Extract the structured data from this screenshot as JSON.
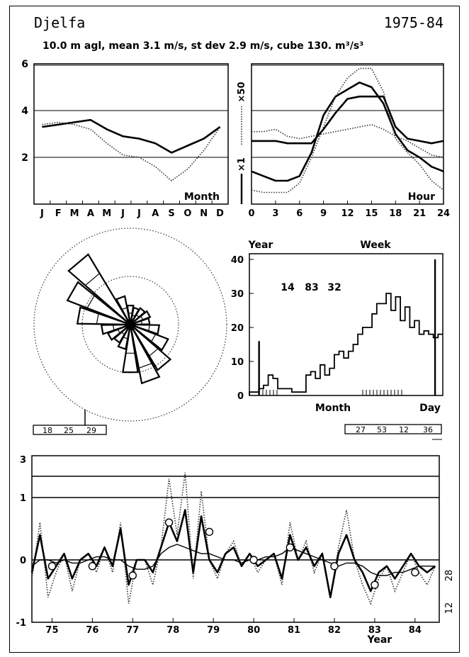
{
  "header": {
    "station": "Djelfa",
    "period": "1975-84",
    "subtitle": "10.0 m agl, mean  3.1 m/s, st dev  2.9 m/s, cube  130. m³/s³"
  },
  "chart_data": [
    {
      "id": "monthly",
      "type": "line",
      "label": "Month",
      "ylim": [
        0,
        6
      ],
      "yticks": [
        2,
        4,
        6
      ],
      "reference_lines": [
        2,
        4
      ],
      "categories": [
        "J",
        "F",
        "M",
        "A",
        "M",
        "J",
        "J",
        "A",
        "S",
        "O",
        "N",
        "D"
      ],
      "x": [
        0.5,
        1.5,
        2.5,
        3.5,
        4.5,
        5.5,
        6.5,
        7.5,
        8.5,
        9.5,
        10.5,
        11.5
      ],
      "series": [
        {
          "style": "solid-thick",
          "values": [
            3.3,
            3.4,
            3.5,
            3.6,
            3.2,
            2.9,
            2.8,
            2.6,
            2.2,
            2.5,
            2.8,
            3.3
          ]
        },
        {
          "style": "dotted",
          "values": [
            3.4,
            3.5,
            3.4,
            3.2,
            2.6,
            2.1,
            2.0,
            1.6,
            1.0,
            1.5,
            2.3,
            3.3
          ]
        }
      ]
    },
    {
      "id": "diurnal",
      "type": "line",
      "label": "Hour",
      "xlim": [
        0,
        24
      ],
      "xticks": [
        0,
        3,
        6,
        9,
        12,
        15,
        18,
        21,
        24
      ],
      "ylim": [
        0,
        6
      ],
      "reference_lines": [
        2,
        4
      ],
      "axis_labels": [
        "×50",
        "×1"
      ],
      "x": [
        0,
        1.5,
        3,
        4.5,
        6,
        7.5,
        9,
        10.5,
        12,
        13.5,
        15,
        16.5,
        18,
        19.5,
        21,
        22.5,
        24
      ],
      "series": [
        {
          "style": "solid-thick",
          "values": [
            2.7,
            2.7,
            2.7,
            2.6,
            2.6,
            2.6,
            3.2,
            3.9,
            4.5,
            4.6,
            4.6,
            4.6,
            3.3,
            2.8,
            2.7,
            2.6,
            2.7
          ]
        },
        {
          "style": "solid-thick",
          "values": [
            1.4,
            1.2,
            1.0,
            1.0,
            1.2,
            2.2,
            3.8,
            4.6,
            4.9,
            5.2,
            5.0,
            4.3,
            3.0,
            2.3,
            2.0,
            1.6,
            1.4
          ]
        },
        {
          "style": "dotted",
          "values": [
            0.6,
            0.5,
            0.5,
            0.5,
            0.9,
            2.0,
            3.3,
            4.6,
            5.4,
            5.8,
            5.8,
            4.8,
            2.8,
            2.2,
            1.7,
            1.0,
            0.6
          ]
        },
        {
          "style": "dotted",
          "values": [
            3.1,
            3.1,
            3.2,
            2.9,
            2.8,
            2.9,
            3.0,
            3.1,
            3.2,
            3.3,
            3.4,
            3.2,
            2.9,
            2.7,
            2.4,
            2.1,
            2.0
          ]
        }
      ]
    },
    {
      "id": "windrose",
      "type": "rose",
      "sectors_deg": [
        0,
        20,
        40,
        60,
        80,
        100,
        120,
        140,
        160,
        180,
        200,
        220,
        240,
        260,
        280,
        300,
        320,
        340
      ],
      "frequency": [
        0.2,
        0.18,
        0.2,
        0.22,
        0.2,
        0.3,
        0.42,
        0.55,
        0.62,
        0.5,
        0.26,
        0.22,
        0.25,
        0.3,
        0.55,
        0.7,
        0.85,
        0.3
      ],
      "speed": [
        0.12,
        0.1,
        0.12,
        0.14,
        0.12,
        0.2,
        0.28,
        0.38,
        0.46,
        0.3,
        0.15,
        0.12,
        0.14,
        0.18,
        0.35,
        0.48,
        0.62,
        0.18
      ],
      "reference_rings": [
        0.5,
        1.0
      ],
      "legend": [
        "18",
        "25",
        "29"
      ]
    },
    {
      "id": "distribution",
      "type": "bar",
      "labels": {
        "left": "Year",
        "top": "Week",
        "bottom": "Month",
        "right": "Day"
      },
      "ylim": [
        0,
        40
      ],
      "yticks": [
        0,
        10,
        20,
        30,
        40
      ],
      "xlim": [
        0,
        30
      ],
      "annotation": [
        "14",
        "83",
        "32"
      ],
      "values": [
        1,
        1,
        2,
        3,
        6,
        5,
        2,
        2,
        2,
        1,
        1,
        1,
        6,
        7,
        5,
        9,
        6,
        8,
        12,
        13,
        11,
        13,
        15,
        18,
        20,
        20,
        24,
        27,
        27,
        30,
        25,
        29,
        22,
        26,
        20,
        22,
        18,
        19,
        18,
        17,
        18
      ],
      "spikes": [
        {
          "x": 1.5,
          "value": 16
        },
        {
          "x": 28.8,
          "value": 40
        }
      ],
      "legend": [
        "27",
        "53",
        "12",
        "36"
      ]
    },
    {
      "id": "timeseries",
      "type": "line",
      "xlabel": "Year",
      "xticks": [
        75,
        76,
        77,
        78,
        79,
        80,
        81,
        82,
        83,
        84
      ],
      "xlim": [
        74.5,
        84.6
      ],
      "ylim": [
        -1,
        3
      ],
      "yticks": [
        -1,
        0,
        1,
        3
      ],
      "reference_lines": [
        0,
        1,
        1.5
      ],
      "right_axis_labels": [
        "28",
        "12"
      ],
      "x": [
        74.5,
        74.7,
        74.9,
        75.1,
        75.3,
        75.5,
        75.7,
        75.9,
        76.1,
        76.3,
        76.5,
        76.7,
        76.9,
        77.1,
        77.3,
        77.5,
        77.7,
        77.9,
        78.1,
        78.3,
        78.5,
        78.7,
        78.9,
        79.1,
        79.3,
        79.5,
        79.7,
        79.9,
        80.1,
        80.3,
        80.5,
        80.7,
        80.9,
        81.1,
        81.3,
        81.5,
        81.7,
        81.9,
        82.1,
        82.3,
        82.5,
        82.7,
        82.9,
        83.1,
        83.3,
        83.5,
        83.7,
        83.9,
        84.1,
        84.3,
        84.5
      ],
      "series": [
        {
          "style": "dotted",
          "values": [
            -0.3,
            0.6,
            -0.6,
            -0.2,
            0.1,
            -0.5,
            0.0,
            0.1,
            -0.2,
            0.2,
            -0.2,
            0.6,
            -0.7,
            0.0,
            0.0,
            -0.4,
            0.2,
            1.3,
            0.4,
            1.4,
            -0.3,
            1.1,
            0.0,
            -0.3,
            0.1,
            0.3,
            -0.1,
            0.1,
            -0.2,
            0.0,
            0.1,
            -0.4,
            0.6,
            0.0,
            0.3,
            -0.2,
            0.1,
            -0.6,
            0.2,
            0.8,
            0.0,
            -0.4,
            -0.7,
            -0.3,
            -0.1,
            -0.5,
            -0.2,
            0.1,
            -0.2,
            -0.4,
            -0.1
          ]
        },
        {
          "style": "solid-thick",
          "values": [
            -0.2,
            0.4,
            -0.3,
            -0.1,
            0.1,
            -0.3,
            0.0,
            0.1,
            -0.1,
            0.2,
            -0.1,
            0.5,
            -0.4,
            0.0,
            0.0,
            -0.2,
            0.2,
            0.6,
            0.3,
            0.8,
            -0.2,
            0.7,
            0.0,
            -0.2,
            0.1,
            0.2,
            -0.1,
            0.1,
            -0.1,
            0.0,
            0.1,
            -0.3,
            0.4,
            0.0,
            0.2,
            -0.1,
            0.1,
            -0.6,
            0.1,
            0.4,
            0.0,
            -0.2,
            -0.5,
            -0.2,
            -0.1,
            -0.3,
            -0.1,
            0.1,
            -0.1,
            -0.2,
            -0.1
          ]
        },
        {
          "style": "solid-thin",
          "values": [
            -0.1,
            0.0,
            0.0,
            -0.05,
            0.0,
            -0.05,
            -0.05,
            0.0,
            0.05,
            0.05,
            0.0,
            0.0,
            -0.1,
            -0.15,
            -0.15,
            -0.1,
            0.1,
            0.2,
            0.25,
            0.2,
            0.15,
            0.1,
            0.1,
            0.05,
            0.0,
            0.0,
            -0.05,
            0.0,
            0.0,
            0.05,
            0.05,
            0.1,
            0.2,
            0.15,
            0.1,
            0.05,
            0.0,
            -0.05,
            -0.1,
            -0.05,
            -0.05,
            -0.1,
            -0.2,
            -0.25,
            -0.25,
            -0.2,
            -0.2,
            -0.15,
            -0.1,
            -0.1,
            -0.1
          ]
        }
      ],
      "annual_markers": [
        {
          "x": 75.0,
          "value": -0.1
        },
        {
          "x": 76.0,
          "value": -0.1
        },
        {
          "x": 77.0,
          "value": -0.25
        },
        {
          "x": 77.9,
          "value": 0.6
        },
        {
          "x": 78.9,
          "value": 0.45
        },
        {
          "x": 80.0,
          "value": 0.0
        },
        {
          "x": 80.9,
          "value": 0.2
        },
        {
          "x": 82.0,
          "value": -0.1
        },
        {
          "x": 83.0,
          "value": -0.4
        },
        {
          "x": 84.0,
          "value": -0.2
        }
      ]
    }
  ]
}
